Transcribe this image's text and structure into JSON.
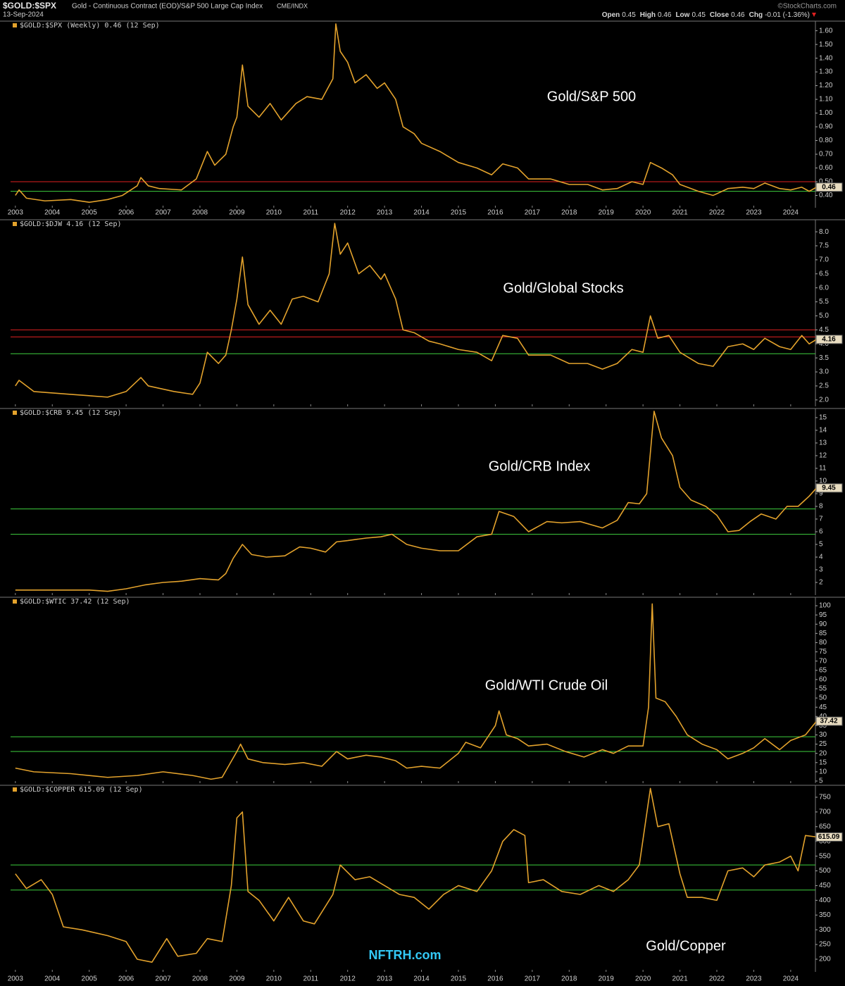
{
  "header": {
    "symbol": "$GOLD:$SPX",
    "description": "Gold - Continuous Contract (EOD)/S&P 500 Large Cap Index",
    "exchange": "CME/INDX",
    "date": "13-Sep-2024",
    "source": "©StockCharts.com",
    "quote": [
      {
        "label": "Open",
        "value": "0.45"
      },
      {
        "label": "High",
        "value": "0.46"
      },
      {
        "label": "Low",
        "value": "0.45"
      },
      {
        "label": "Close",
        "value": "0.46"
      },
      {
        "label": "Chg",
        "value": "-0.01 (-1.36%)"
      }
    ]
  },
  "chart_data": [
    {
      "type": "line",
      "legend_label": "$GOLD:$SPX (Weekly) 0.46 (12 Sep)",
      "annotation": "Gold/S&P 500",
      "color": "#e3a22c",
      "last_value": 0.46,
      "x_axis_labels": true,
      "xlim": [
        2002.87,
        2024.67
      ],
      "xticks": [
        2003,
        2004,
        2005,
        2006,
        2007,
        2008,
        2009,
        2010,
        2011,
        2012,
        2013,
        2014,
        2015,
        2016,
        2017,
        2018,
        2019,
        2020,
        2021,
        2022,
        2023,
        2024
      ],
      "ylim": [
        0.31,
        1.67
      ],
      "yticks": [
        {
          "value": 0.4,
          "label": "0.40"
        },
        {
          "value": 0.5,
          "label": "0.50"
        },
        {
          "value": 0.6,
          "label": "0.60"
        },
        {
          "value": 0.7,
          "label": "0.70"
        },
        {
          "value": 0.8,
          "label": "0.80"
        },
        {
          "value": 0.9,
          "label": "0.90"
        },
        {
          "value": 1.0,
          "label": "1.00"
        },
        {
          "value": 1.1,
          "label": "1.10"
        },
        {
          "value": 1.2,
          "label": "1.20"
        },
        {
          "value": 1.3,
          "label": "1.30"
        },
        {
          "value": 1.4,
          "label": "1.40"
        },
        {
          "value": 1.5,
          "label": "1.50"
        },
        {
          "value": 1.6,
          "label": "1.60"
        }
      ],
      "levels": [
        {
          "value": 0.5,
          "color": "#e02020"
        },
        {
          "value": 0.43,
          "color": "#3ecf3e"
        }
      ],
      "x": [
        2003.0,
        2003.1,
        2003.3,
        2003.8,
        2004.5,
        2005.0,
        2005.5,
        2005.9,
        2006.3,
        2006.4,
        2006.6,
        2006.9,
        2007.5,
        2007.9,
        2008.2,
        2008.4,
        2008.7,
        2008.9,
        2009.0,
        2009.15,
        2009.3,
        2009.6,
        2009.9,
        2010.2,
        2010.6,
        2010.9,
        2011.3,
        2011.6,
        2011.68,
        2011.8,
        2012.0,
        2012.2,
        2012.5,
        2012.8,
        2013.0,
        2013.3,
        2013.5,
        2013.8,
        2014.0,
        2014.5,
        2015.0,
        2015.5,
        2015.9,
        2016.2,
        2016.6,
        2016.9,
        2017.5,
        2018.0,
        2018.5,
        2018.9,
        2019.3,
        2019.7,
        2020.0,
        2020.2,
        2020.5,
        2020.8,
        2021.0,
        2021.5,
        2021.9,
        2022.3,
        2022.7,
        2023.0,
        2023.3,
        2023.7,
        2024.0,
        2024.3,
        2024.5,
        2024.7
      ],
      "values": [
        0.4,
        0.44,
        0.38,
        0.36,
        0.37,
        0.35,
        0.37,
        0.4,
        0.47,
        0.53,
        0.47,
        0.45,
        0.44,
        0.52,
        0.72,
        0.62,
        0.7,
        0.9,
        0.97,
        1.35,
        1.05,
        0.97,
        1.07,
        0.95,
        1.07,
        1.12,
        1.1,
        1.25,
        1.65,
        1.45,
        1.37,
        1.22,
        1.28,
        1.18,
        1.22,
        1.1,
        0.9,
        0.85,
        0.78,
        0.72,
        0.64,
        0.6,
        0.55,
        0.63,
        0.6,
        0.52,
        0.52,
        0.48,
        0.48,
        0.44,
        0.45,
        0.5,
        0.48,
        0.64,
        0.6,
        0.55,
        0.48,
        0.43,
        0.4,
        0.45,
        0.46,
        0.45,
        0.49,
        0.45,
        0.44,
        0.46,
        0.43,
        0.46
      ]
    },
    {
      "type": "line",
      "legend_label": "$GOLD:$DJW 4.16 (12 Sep)",
      "annotation": "Gold/Global Stocks",
      "color": "#e3a22c",
      "last_value": 4.16,
      "x_axis_labels": false,
      "xlim": [
        2002.87,
        2024.67
      ],
      "xticks": [
        2003,
        2004,
        2005,
        2006,
        2007,
        2008,
        2009,
        2010,
        2011,
        2012,
        2013,
        2014,
        2015,
        2016,
        2017,
        2018,
        2019,
        2020,
        2021,
        2022,
        2023,
        2024
      ],
      "ylim": [
        1.77,
        8.43
      ],
      "yticks": [
        {
          "value": 2,
          "label": "2.0"
        },
        {
          "value": 2.5,
          "label": "2.5"
        },
        {
          "value": 3,
          "label": "3.0"
        },
        {
          "value": 3.5,
          "label": "3.5"
        },
        {
          "value": 4,
          "label": "4.0"
        },
        {
          "value": 4.5,
          "label": "4.5"
        },
        {
          "value": 5,
          "label": "5.0"
        },
        {
          "value": 5.5,
          "label": "5.5"
        },
        {
          "value": 6,
          "label": "6.0"
        },
        {
          "value": 6.5,
          "label": "6.5"
        },
        {
          "value": 7,
          "label": "7.0"
        },
        {
          "value": 7.5,
          "label": "7.5"
        },
        {
          "value": 8,
          "label": "8.0"
        }
      ],
      "levels": [
        {
          "value": 4.5,
          "color": "#e02020"
        },
        {
          "value": 4.25,
          "color": "#e02020"
        },
        {
          "value": 3.65,
          "color": "#3ecf3e"
        }
      ],
      "x": [
        2003.0,
        2003.1,
        2003.5,
        2004.5,
        2005.5,
        2006.0,
        2006.4,
        2006.6,
        2007.3,
        2007.8,
        2008.0,
        2008.2,
        2008.5,
        2008.7,
        2008.85,
        2009.0,
        2009.15,
        2009.3,
        2009.6,
        2009.9,
        2010.2,
        2010.5,
        2010.8,
        2011.2,
        2011.5,
        2011.65,
        2011.8,
        2012.0,
        2012.3,
        2012.6,
        2012.9,
        2013.0,
        2013.3,
        2013.5,
        2013.8,
        2014.2,
        2014.5,
        2015.0,
        2015.5,
        2015.9,
        2016.2,
        2016.6,
        2016.9,
        2017.5,
        2018.0,
        2018.5,
        2018.9,
        2019.3,
        2019.7,
        2020.0,
        2020.2,
        2020.4,
        2020.7,
        2021.0,
        2021.5,
        2021.9,
        2022.3,
        2022.7,
        2023.0,
        2023.3,
        2023.7,
        2024.0,
        2024.3,
        2024.5,
        2024.7
      ],
      "values": [
        2.5,
        2.7,
        2.3,
        2.2,
        2.1,
        2.3,
        2.8,
        2.5,
        2.3,
        2.2,
        2.6,
        3.7,
        3.3,
        3.6,
        4.5,
        5.6,
        7.1,
        5.4,
        4.7,
        5.2,
        4.7,
        5.6,
        5.7,
        5.5,
        6.5,
        8.3,
        7.2,
        7.6,
        6.5,
        6.8,
        6.3,
        6.5,
        5.6,
        4.5,
        4.4,
        4.1,
        4.0,
        3.8,
        3.7,
        3.4,
        4.3,
        4.2,
        3.6,
        3.6,
        3.3,
        3.3,
        3.1,
        3.3,
        3.8,
        3.7,
        5.0,
        4.2,
        4.3,
        3.7,
        3.3,
        3.2,
        3.9,
        4.0,
        3.8,
        4.2,
        3.9,
        3.8,
        4.3,
        4.0,
        4.16
      ]
    },
    {
      "type": "line",
      "legend_label": "$GOLD:$CRB 9.45 (12 Sep)",
      "annotation": "Gold/CRB Index",
      "color": "#e3a22c",
      "last_value": 9.45,
      "x_axis_labels": false,
      "xlim": [
        2002.87,
        2024.67
      ],
      "xticks": [
        2003,
        2004,
        2005,
        2006,
        2007,
        2008,
        2009,
        2010,
        2011,
        2012,
        2013,
        2014,
        2015,
        2016,
        2017,
        2018,
        2019,
        2020,
        2021,
        2022,
        2023,
        2024
      ],
      "ylim": [
        1.0,
        15.72
      ],
      "yticks": [
        2,
        3,
        4,
        5,
        6,
        7,
        8,
        9,
        10,
        11,
        12,
        13,
        14,
        15
      ],
      "levels": [
        {
          "value": 7.8,
          "color": "#3ecf3e"
        },
        {
          "value": 5.8,
          "color": "#3ecf3e"
        }
      ],
      "x": [
        2003.0,
        2004.0,
        2005.0,
        2005.5,
        2006.0,
        2006.5,
        2007.0,
        2007.5,
        2008.0,
        2008.5,
        2008.7,
        2008.9,
        2009.15,
        2009.4,
        2009.8,
        2010.3,
        2010.7,
        2011.0,
        2011.4,
        2011.7,
        2012.0,
        2012.5,
        2012.9,
        2013.2,
        2013.6,
        2014.0,
        2014.5,
        2015.0,
        2015.5,
        2015.9,
        2016.1,
        2016.5,
        2016.9,
        2017.4,
        2017.8,
        2018.3,
        2018.9,
        2019.3,
        2019.6,
        2019.9,
        2020.1,
        2020.3,
        2020.5,
        2020.8,
        2021.0,
        2021.3,
        2021.7,
        2022.0,
        2022.3,
        2022.6,
        2022.9,
        2023.2,
        2023.6,
        2023.9,
        2024.2,
        2024.5,
        2024.7
      ],
      "values": [
        1.4,
        1.4,
        1.4,
        1.3,
        1.5,
        1.8,
        2.0,
        2.1,
        2.3,
        2.2,
        2.7,
        3.9,
        5.0,
        4.2,
        4.0,
        4.1,
        4.8,
        4.7,
        4.4,
        5.2,
        5.3,
        5.5,
        5.6,
        5.8,
        5.0,
        4.7,
        4.5,
        4.5,
        5.6,
        5.8,
        7.6,
        7.2,
        6.0,
        6.8,
        6.7,
        6.8,
        6.3,
        6.9,
        8.3,
        8.2,
        9.0,
        15.5,
        13.4,
        12.0,
        9.5,
        8.5,
        8.0,
        7.3,
        6.0,
        6.1,
        6.8,
        7.4,
        7.0,
        8.0,
        8.0,
        8.8,
        9.45
      ]
    },
    {
      "type": "line",
      "legend_label": "$GOLD:$WTIC 37.42 (12 Sep)",
      "annotation": "Gold/WTI Crude Oil",
      "color": "#e3a22c",
      "last_value": 37.42,
      "x_axis_labels": false,
      "xlim": [
        2002.87,
        2024.67
      ],
      "xticks": [
        2003,
        2004,
        2005,
        2006,
        2007,
        2008,
        2009,
        2010,
        2011,
        2012,
        2013,
        2014,
        2015,
        2016,
        2017,
        2018,
        2019,
        2020,
        2021,
        2022,
        2023,
        2024
      ],
      "ylim": [
        3.85,
        104.6
      ],
      "yticks": [
        5,
        10,
        15,
        20,
        25,
        30,
        35,
        40,
        45,
        50,
        55,
        60,
        65,
        70,
        75,
        80,
        85,
        90,
        95,
        100
      ],
      "levels": [
        {
          "value": 29,
          "color": "#3ecf3e"
        },
        {
          "value": 21,
          "color": "#3ecf3e"
        }
      ],
      "x": [
        2003.0,
        2003.5,
        2004.5,
        2005.5,
        2006.3,
        2007.0,
        2007.8,
        2008.3,
        2008.6,
        2008.8,
        2009.0,
        2009.1,
        2009.3,
        2009.7,
        2010.3,
        2010.8,
        2011.3,
        2011.7,
        2012.0,
        2012.5,
        2012.9,
        2013.3,
        2013.6,
        2014.0,
        2014.5,
        2015.0,
        2015.2,
        2015.6,
        2016.0,
        2016.1,
        2016.3,
        2016.6,
        2016.9,
        2017.4,
        2017.9,
        2018.4,
        2018.9,
        2019.2,
        2019.6,
        2020.0,
        2020.15,
        2020.25,
        2020.35,
        2020.6,
        2020.9,
        2021.2,
        2021.6,
        2022.0,
        2022.3,
        2022.7,
        2023.0,
        2023.3,
        2023.7,
        2024.0,
        2024.4,
        2024.7
      ],
      "values": [
        12,
        10,
        9,
        7,
        8,
        10,
        8,
        6,
        7,
        14,
        21,
        25,
        17,
        15,
        14,
        15,
        13,
        21,
        17,
        19,
        18,
        16,
        12,
        13,
        12,
        20,
        26,
        23,
        35,
        43,
        30,
        28,
        24,
        25,
        21,
        18,
        22,
        20,
        24,
        24,
        45,
        101,
        50,
        48,
        40,
        30,
        25,
        22,
        17,
        20,
        23,
        28,
        22,
        27,
        30,
        37.42
      ]
    },
    {
      "type": "line",
      "legend_label": "$GOLD:$COPPER 615.09 (12 Sep)",
      "annotation": "Gold/Copper",
      "watermark": "NFTRH.com",
      "color": "#e3a22c",
      "last_value": 615.09,
      "x_axis_labels": true,
      "xlim": [
        2002.87,
        2024.67
      ],
      "xticks": [
        2003,
        2004,
        2005,
        2006,
        2007,
        2008,
        2009,
        2010,
        2011,
        2012,
        2013,
        2014,
        2015,
        2016,
        2017,
        2018,
        2019,
        2020,
        2021,
        2022,
        2023,
        2024
      ],
      "ylim": [
        156.9,
        790.6
      ],
      "yticks": [
        200,
        250,
        300,
        350,
        400,
        450,
        500,
        550,
        600,
        650,
        700,
        750
      ],
      "levels": [
        {
          "value": 520,
          "color": "#3ecf3e"
        },
        {
          "value": 435,
          "color": "#3ecf3e"
        }
      ],
      "x": [
        2003.0,
        2003.3,
        2003.7,
        2004.0,
        2004.3,
        2004.8,
        2005.5,
        2006.0,
        2006.3,
        2006.7,
        2007.1,
        2007.4,
        2007.9,
        2008.2,
        2008.6,
        2008.85,
        2009.0,
        2009.15,
        2009.3,
        2009.6,
        2010.0,
        2010.4,
        2010.8,
        2011.1,
        2011.6,
        2011.8,
        2012.2,
        2012.6,
        2013.0,
        2013.4,
        2013.8,
        2014.2,
        2014.6,
        2015.0,
        2015.5,
        2015.9,
        2016.2,
        2016.5,
        2016.8,
        2016.9,
        2017.3,
        2017.8,
        2018.3,
        2018.8,
        2019.2,
        2019.6,
        2019.9,
        2020.2,
        2020.4,
        2020.7,
        2021.0,
        2021.2,
        2021.6,
        2022.0,
        2022.3,
        2022.7,
        2023.0,
        2023.3,
        2023.7,
        2024.0,
        2024.2,
        2024.4,
        2024.7
      ],
      "values": [
        490,
        440,
        470,
        420,
        310,
        300,
        280,
        260,
        200,
        190,
        270,
        210,
        220,
        270,
        260,
        450,
        680,
        700,
        430,
        400,
        330,
        410,
        330,
        320,
        420,
        520,
        470,
        480,
        450,
        420,
        410,
        370,
        420,
        450,
        430,
        500,
        600,
        640,
        620,
        460,
        470,
        430,
        420,
        450,
        430,
        470,
        520,
        780,
        650,
        660,
        490,
        410,
        410,
        400,
        500,
        510,
        480,
        520,
        530,
        550,
        500,
        620,
        615.09
      ]
    }
  ]
}
